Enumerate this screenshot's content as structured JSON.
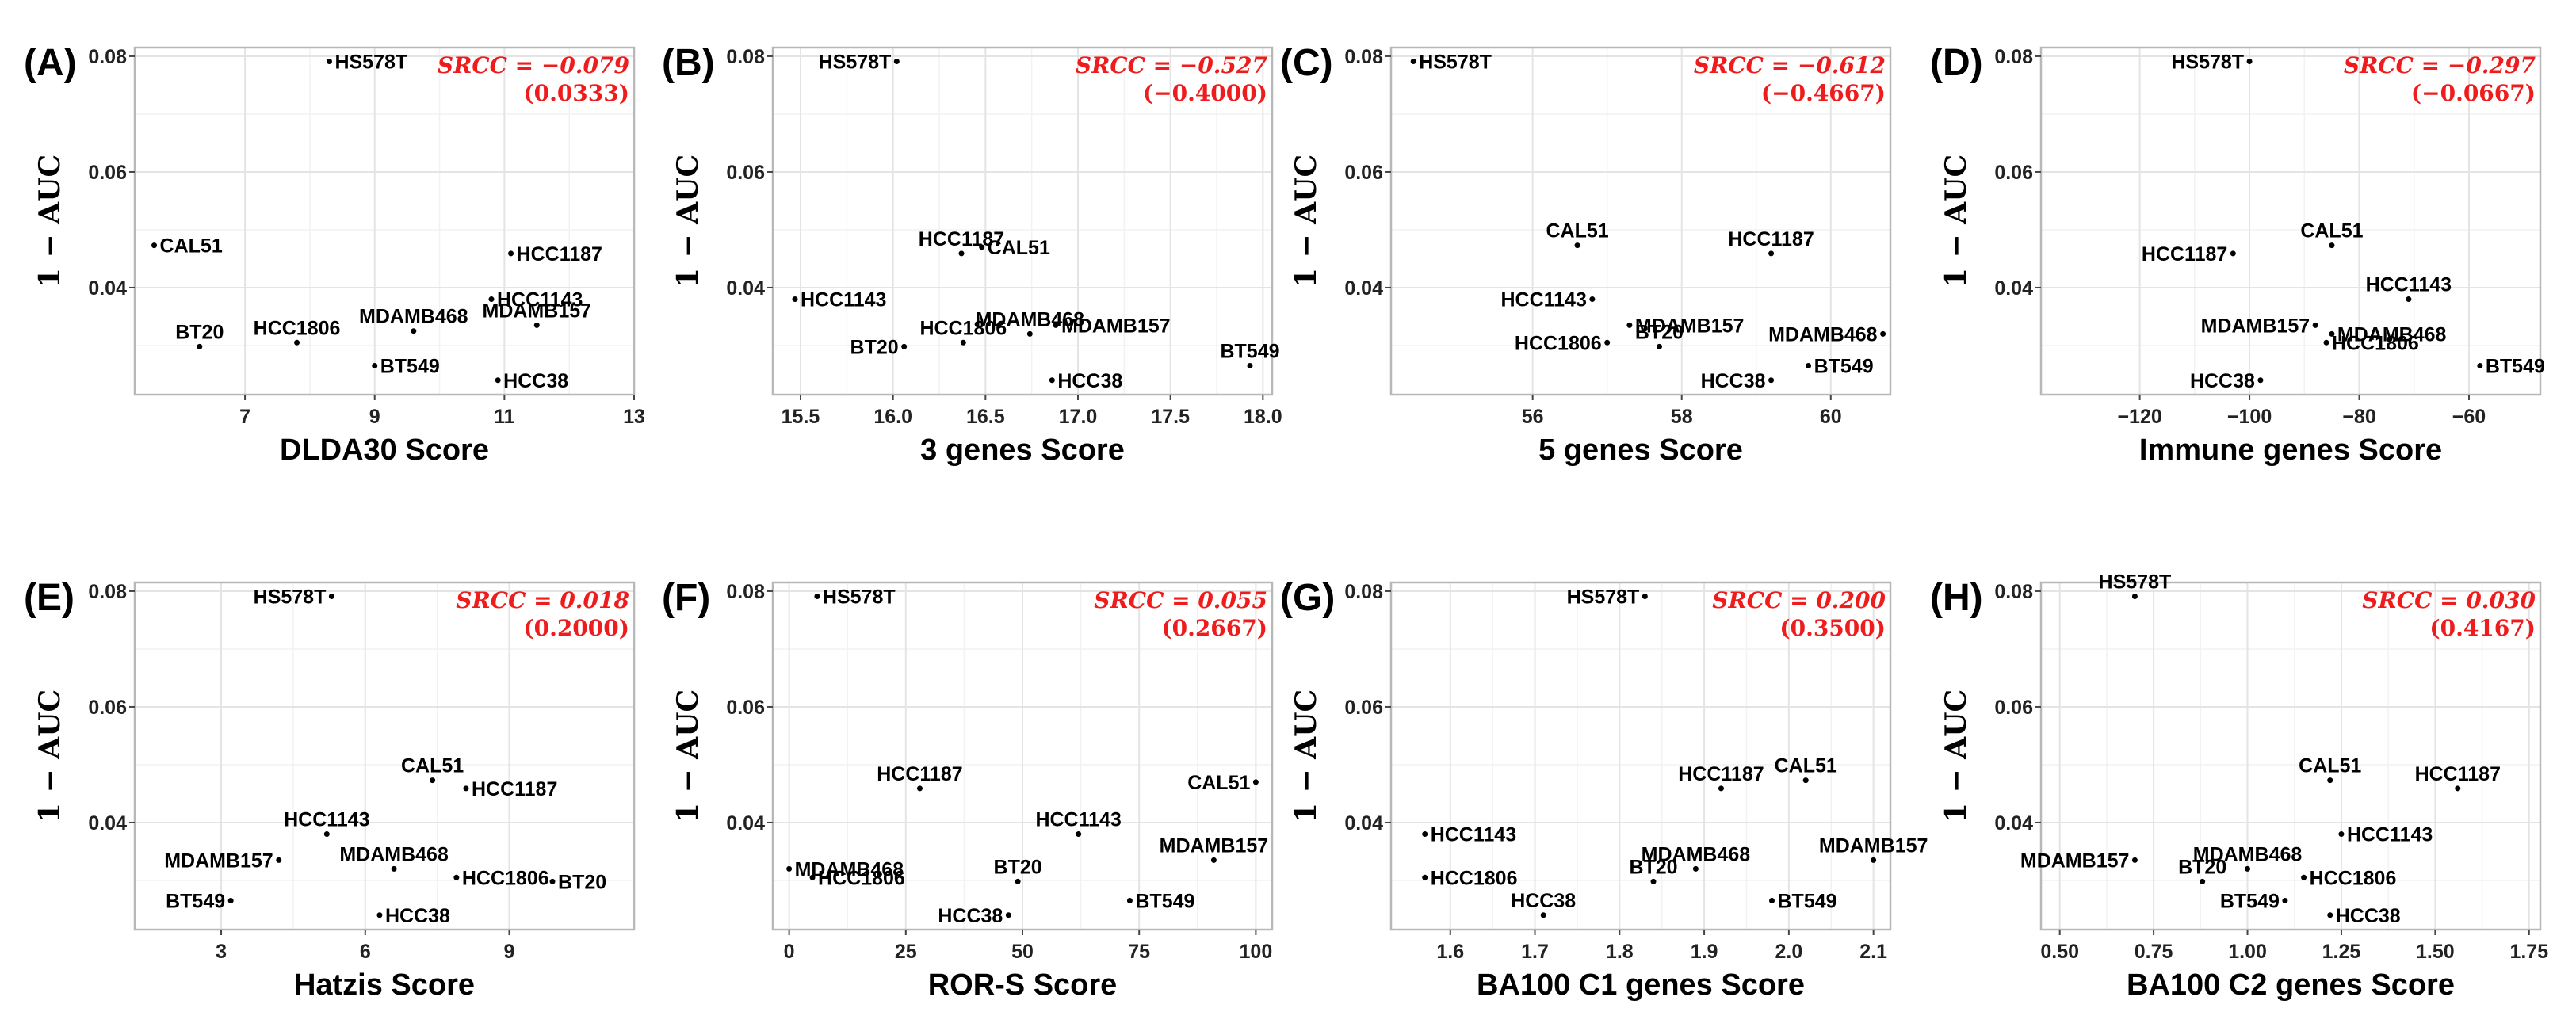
{
  "figure": {
    "y_axis_title": "1 − AUC",
    "srcc_prefix": "SRCC = ",
    "srcc_color": "#ee1c1c"
  },
  "chart_data": [
    {
      "panel": "(A)",
      "type": "scatter",
      "title": "",
      "xlabel": "DLDA30 Score",
      "ylabel": "1 − AUC",
      "xlim": [
        5.3,
        13.0
      ],
      "ylim": [
        0.0215,
        0.0815
      ],
      "xticks": [
        7,
        9,
        11,
        13
      ],
      "xtick_labels": [
        "7",
        "9",
        "11",
        "13"
      ],
      "yticks": [
        0.04,
        0.06,
        0.08
      ],
      "ytick_labels": [
        "0.04",
        "0.06",
        "0.08"
      ],
      "srcc": "−0.079",
      "pvalue": "(0.0333)",
      "points": [
        {
          "label": "HS578T",
          "x": 8.3,
          "y": 0.0791,
          "anchor": "start"
        },
        {
          "label": "CAL51",
          "x": 5.6,
          "y": 0.0473,
          "anchor": "start"
        },
        {
          "label": "HCC1187",
          "x": 11.1,
          "y": 0.0459,
          "anchor": "start"
        },
        {
          "label": "HCC1143",
          "x": 10.8,
          "y": 0.038,
          "anchor": "start"
        },
        {
          "label": "MDAMB468",
          "x": 9.6,
          "y": 0.0325,
          "anchor": "middle"
        },
        {
          "label": "MDAMB157",
          "x": 11.5,
          "y": 0.0335,
          "anchor": "middle"
        },
        {
          "label": "HCC1806",
          "x": 7.8,
          "y": 0.0305,
          "anchor": "middle"
        },
        {
          "label": "BT20",
          "x": 6.3,
          "y": 0.0298,
          "anchor": "middle"
        },
        {
          "label": "BT549",
          "x": 9.0,
          "y": 0.0265,
          "anchor": "start"
        },
        {
          "label": "HCC38",
          "x": 10.9,
          "y": 0.024,
          "anchor": "start"
        }
      ]
    },
    {
      "panel": "(B)",
      "type": "scatter",
      "title": "",
      "xlabel": "3 genes Score",
      "ylabel": "1 − AUC",
      "xlim": [
        15.35,
        18.05
      ],
      "ylim": [
        0.0215,
        0.0815
      ],
      "xticks": [
        15.5,
        16.0,
        16.5,
        17.0,
        17.5,
        18.0
      ],
      "xtick_labels": [
        "15.5",
        "16.0",
        "16.5",
        "17.0",
        "17.5",
        "18.0"
      ],
      "yticks": [
        0.04,
        0.06,
        0.08
      ],
      "ytick_labels": [
        "0.04",
        "0.06",
        "0.08"
      ],
      "srcc": "−0.527",
      "pvalue": "(−0.4000)",
      "points": [
        {
          "label": "HS578T",
          "x": 16.02,
          "y": 0.0791,
          "anchor": "end"
        },
        {
          "label": "CAL51",
          "x": 16.48,
          "y": 0.047,
          "anchor": "start"
        },
        {
          "label": "HCC1187",
          "x": 16.37,
          "y": 0.0459,
          "anchor": "middle"
        },
        {
          "label": "HCC1143",
          "x": 15.47,
          "y": 0.038,
          "anchor": "start"
        },
        {
          "label": "HCC1806",
          "x": 16.38,
          "y": 0.0305,
          "anchor": "middle"
        },
        {
          "label": "MDAMB157",
          "x": 16.88,
          "y": 0.0335,
          "anchor": "start"
        },
        {
          "label": "MDAMB468",
          "x": 16.74,
          "y": 0.032,
          "anchor": "middle"
        },
        {
          "label": "BT20",
          "x": 16.06,
          "y": 0.0298,
          "anchor": "end"
        },
        {
          "label": "BT549",
          "x": 17.93,
          "y": 0.0265,
          "anchor": "middle"
        },
        {
          "label": "HCC38",
          "x": 16.86,
          "y": 0.024,
          "anchor": "start"
        }
      ]
    },
    {
      "panel": "(C)",
      "type": "scatter",
      "title": "",
      "xlabel": "5 genes Score",
      "ylabel": "1 − AUC",
      "xlim": [
        54.1,
        60.8
      ],
      "ylim": [
        0.0215,
        0.0815
      ],
      "xticks": [
        56,
        58,
        60
      ],
      "xtick_labels": [
        "56",
        "58",
        "60"
      ],
      "yticks": [
        0.04,
        0.06,
        0.08
      ],
      "ytick_labels": [
        "0.04",
        "0.06",
        "0.08"
      ],
      "srcc": "−0.612",
      "pvalue": "(−0.4667)",
      "points": [
        {
          "label": "HS578T",
          "x": 54.4,
          "y": 0.0791,
          "anchor": "start"
        },
        {
          "label": "CAL51",
          "x": 56.6,
          "y": 0.0473,
          "anchor": "middle"
        },
        {
          "label": "HCC1187",
          "x": 59.2,
          "y": 0.0459,
          "anchor": "middle"
        },
        {
          "label": "HCC1143",
          "x": 56.8,
          "y": 0.038,
          "anchor": "end"
        },
        {
          "label": "MDAMB157",
          "x": 57.3,
          "y": 0.0335,
          "anchor": "start"
        },
        {
          "label": "MDAMB468",
          "x": 60.7,
          "y": 0.032,
          "anchor": "end"
        },
        {
          "label": "HCC1806",
          "x": 57.0,
          "y": 0.0305,
          "anchor": "end"
        },
        {
          "label": "BT20",
          "x": 57.7,
          "y": 0.0298,
          "anchor": "middle"
        },
        {
          "label": "BT549",
          "x": 59.7,
          "y": 0.0265,
          "anchor": "start"
        },
        {
          "label": "HCC38",
          "x": 59.2,
          "y": 0.024,
          "anchor": "end"
        }
      ]
    },
    {
      "panel": "(D)",
      "type": "scatter",
      "title": "",
      "xlabel": "Immune genes Score",
      "ylabel": "1 − AUC",
      "xlim": [
        -138,
        -47
      ],
      "ylim": [
        0.0215,
        0.0815
      ],
      "xticks": [
        -120,
        -100,
        -80,
        -60
      ],
      "xtick_labels": [
        "−120",
        "−100",
        "−80",
        "−60"
      ],
      "yticks": [
        0.04,
        0.06,
        0.08
      ],
      "ytick_labels": [
        "0.04",
        "0.06",
        "0.08"
      ],
      "srcc": "−0.297",
      "pvalue": "(−0.0667)",
      "points": [
        {
          "label": "HS578T",
          "x": -100,
          "y": 0.0791,
          "anchor": "end"
        },
        {
          "label": "CAL51",
          "x": -85,
          "y": 0.0473,
          "anchor": "middle"
        },
        {
          "label": "HCC1187",
          "x": -103,
          "y": 0.0459,
          "anchor": "end"
        },
        {
          "label": "HCC1143",
          "x": -71,
          "y": 0.038,
          "anchor": "middle"
        },
        {
          "label": "MDAMB157",
          "x": -88,
          "y": 0.0335,
          "anchor": "end"
        },
        {
          "label": "MDAMB468",
          "x": -85,
          "y": 0.032,
          "anchor": "start"
        },
        {
          "label": "HCC1806",
          "x": -86,
          "y": 0.0305,
          "anchor": "start"
        },
        {
          "label": "BT549",
          "x": -58,
          "y": 0.0265,
          "anchor": "start"
        },
        {
          "label": "HCC38",
          "x": -98,
          "y": 0.024,
          "anchor": "end"
        }
      ]
    },
    {
      "panel": "(E)",
      "type": "scatter",
      "title": "",
      "xlabel": "Hatzis Score",
      "ylabel": "1 − AUC",
      "xlim": [
        1.2,
        11.6
      ],
      "ylim": [
        0.0215,
        0.0815
      ],
      "xticks": [
        3,
        6,
        9
      ],
      "xtick_labels": [
        "3",
        "6",
        "9"
      ],
      "yticks": [
        0.04,
        0.06,
        0.08
      ],
      "ytick_labels": [
        "0.04",
        "0.06",
        "0.08"
      ],
      "srcc": "0.018",
      "pvalue": "(0.2000)",
      "points": [
        {
          "label": "HS578T",
          "x": 5.3,
          "y": 0.0791,
          "anchor": "end"
        },
        {
          "label": "CAL51",
          "x": 7.4,
          "y": 0.0473,
          "anchor": "middle"
        },
        {
          "label": "HCC1187",
          "x": 8.1,
          "y": 0.0459,
          "anchor": "start"
        },
        {
          "label": "HCC1143",
          "x": 5.2,
          "y": 0.038,
          "anchor": "middle"
        },
        {
          "label": "MDAMB157",
          "x": 4.2,
          "y": 0.0335,
          "anchor": "end"
        },
        {
          "label": "HCC1806",
          "x": 7.9,
          "y": 0.0305,
          "anchor": "start"
        },
        {
          "label": "MDAMB468",
          "x": 6.6,
          "y": 0.032,
          "anchor": "middle"
        },
        {
          "label": "HCC38",
          "x": 6.3,
          "y": 0.024,
          "anchor": "start"
        },
        {
          "label": "BT549",
          "x": 3.2,
          "y": 0.0265,
          "anchor": "end"
        },
        {
          "label": "BT20",
          "x": 9.9,
          "y": 0.0298,
          "anchor": "start"
        }
      ]
    },
    {
      "panel": "(F)",
      "type": "scatter",
      "title": "",
      "xlabel": "ROR-S Score",
      "ylabel": "1 − AUC",
      "xlim": [
        -3.5,
        103.5
      ],
      "ylim": [
        0.0215,
        0.0815
      ],
      "xticks": [
        0,
        25,
        50,
        75,
        100
      ],
      "xtick_labels": [
        "0",
        "25",
        "50",
        "75",
        "100"
      ],
      "yticks": [
        0.04,
        0.06,
        0.08
      ],
      "ytick_labels": [
        "0.04",
        "0.06",
        "0.08"
      ],
      "srcc": "0.055",
      "pvalue": "(0.2667)",
      "points": [
        {
          "label": "HS578T",
          "x": 6,
          "y": 0.0791,
          "anchor": "start"
        },
        {
          "label": "HCC1187",
          "x": 28,
          "y": 0.0459,
          "anchor": "middle"
        },
        {
          "label": "CAL51",
          "x": 100,
          "y": 0.047,
          "anchor": "end"
        },
        {
          "label": "HCC1143",
          "x": 62,
          "y": 0.038,
          "anchor": "middle"
        },
        {
          "label": "MDAMB468",
          "x": 0,
          "y": 0.032,
          "anchor": "start"
        },
        {
          "label": "MDAMB157",
          "x": 91,
          "y": 0.0335,
          "anchor": "middle"
        },
        {
          "label": "HCC1806",
          "x": 5,
          "y": 0.0305,
          "anchor": "start"
        },
        {
          "label": "BT20",
          "x": 49,
          "y": 0.0298,
          "anchor": "middle"
        },
        {
          "label": "HCC38",
          "x": 47,
          "y": 0.024,
          "anchor": "end"
        },
        {
          "label": "BT549",
          "x": 73,
          "y": 0.0265,
          "anchor": "start"
        }
      ]
    },
    {
      "panel": "(G)",
      "type": "scatter",
      "title": "",
      "xlabel": "BA100 C1 genes Score",
      "ylabel": "1 − AUC",
      "xlim": [
        1.53,
        2.12
      ],
      "ylim": [
        0.0215,
        0.0815
      ],
      "xticks": [
        1.6,
        1.7,
        1.8,
        1.9,
        2.0,
        2.1
      ],
      "xtick_labels": [
        "1.6",
        "1.7",
        "1.8",
        "1.9",
        "2.0",
        "2.1"
      ],
      "yticks": [
        0.04,
        0.06,
        0.08
      ],
      "ytick_labels": [
        "0.04",
        "0.06",
        "0.08"
      ],
      "srcc": "0.200",
      "pvalue": "(0.3500)",
      "points": [
        {
          "label": "HS578T",
          "x": 1.83,
          "y": 0.0791,
          "anchor": "end"
        },
        {
          "label": "HCC1187",
          "x": 1.92,
          "y": 0.0459,
          "anchor": "middle"
        },
        {
          "label": "CAL51",
          "x": 2.02,
          "y": 0.0473,
          "anchor": "middle"
        },
        {
          "label": "HCC1143",
          "x": 1.57,
          "y": 0.038,
          "anchor": "start"
        },
        {
          "label": "MDAMB468",
          "x": 1.89,
          "y": 0.032,
          "anchor": "middle"
        },
        {
          "label": "MDAMB157",
          "x": 2.1,
          "y": 0.0335,
          "anchor": "middle"
        },
        {
          "label": "HCC1806",
          "x": 1.57,
          "y": 0.0305,
          "anchor": "start"
        },
        {
          "label": "BT20",
          "x": 1.84,
          "y": 0.0298,
          "anchor": "middle"
        },
        {
          "label": "HCC38",
          "x": 1.71,
          "y": 0.024,
          "anchor": "middle"
        },
        {
          "label": "BT549",
          "x": 1.98,
          "y": 0.0265,
          "anchor": "start"
        }
      ]
    },
    {
      "panel": "(H)",
      "type": "scatter",
      "title": "",
      "xlabel": "BA100 C2 genes Score",
      "ylabel": "1 − AUC",
      "xlim": [
        0.45,
        1.78
      ],
      "ylim": [
        0.0215,
        0.0815
      ],
      "xticks": [
        0.5,
        0.75,
        1.0,
        1.25,
        1.5,
        1.75
      ],
      "xtick_labels": [
        "0.50",
        "0.75",
        "1.00",
        "1.25",
        "1.50",
        "1.75"
      ],
      "yticks": [
        0.04,
        0.06,
        0.08
      ],
      "ytick_labels": [
        "0.04",
        "0.06",
        "0.08"
      ],
      "srcc": "0.030",
      "pvalue": "(0.4167)",
      "points": [
        {
          "label": "HS578T",
          "x": 0.7,
          "y": 0.0791,
          "anchor": "middle"
        },
        {
          "label": "CAL51",
          "x": 1.22,
          "y": 0.0473,
          "anchor": "middle"
        },
        {
          "label": "HCC1187",
          "x": 1.56,
          "y": 0.0459,
          "anchor": "middle"
        },
        {
          "label": "HCC1143",
          "x": 1.25,
          "y": 0.038,
          "anchor": "start"
        },
        {
          "label": "MDAMB157",
          "x": 0.7,
          "y": 0.0335,
          "anchor": "end"
        },
        {
          "label": "MDAMB468",
          "x": 1.0,
          "y": 0.032,
          "anchor": "middle"
        },
        {
          "label": "HCC1806",
          "x": 1.15,
          "y": 0.0305,
          "anchor": "start"
        },
        {
          "label": "BT20",
          "x": 0.88,
          "y": 0.0298,
          "anchor": "middle"
        },
        {
          "label": "BT549",
          "x": 1.1,
          "y": 0.0265,
          "anchor": "end"
        },
        {
          "label": "HCC38",
          "x": 1.22,
          "y": 0.024,
          "anchor": "start"
        }
      ]
    }
  ]
}
